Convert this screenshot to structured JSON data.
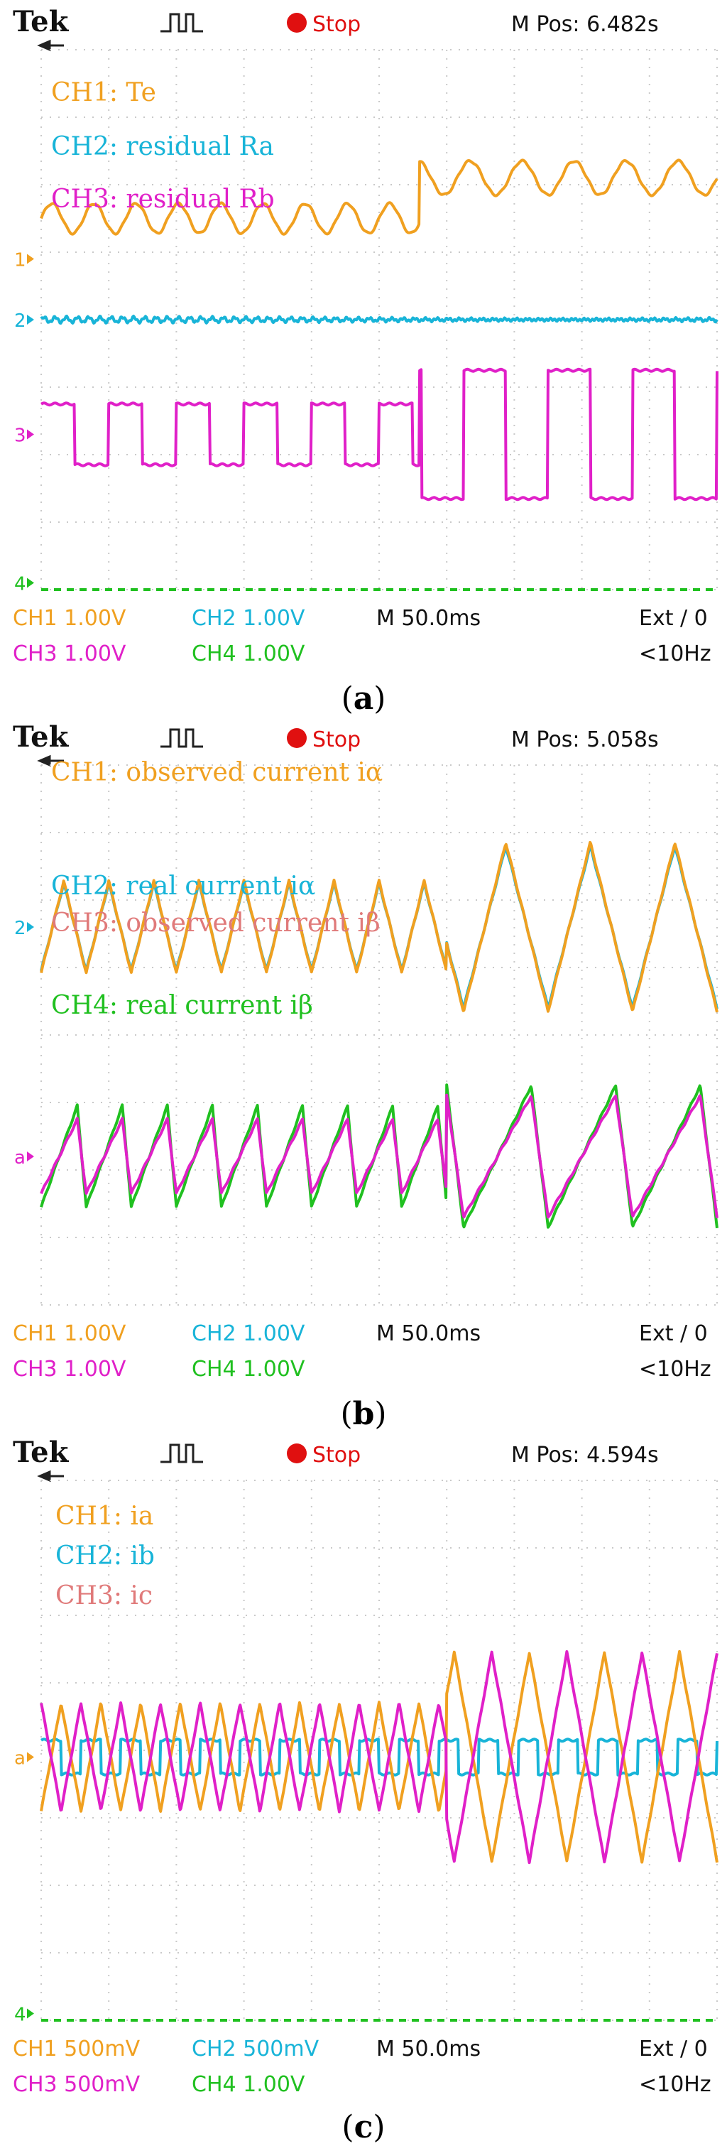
{
  "colors": {
    "ch1": "#f0a020",
    "ch2": "#18b4d8",
    "ch3": "#e020c8",
    "ch4": "#20c020",
    "label_ch3": "#e07a7a",
    "grid": "#c9c9c9",
    "frame_bg": "#ffffff",
    "stop": "#e01010"
  },
  "chart_data": [
    {
      "type": "line",
      "caption": "a",
      "header": {
        "brand": "Tek",
        "status": "Stop",
        "mpos": "M Pos: 6.482s"
      },
      "footer": {
        "row1": [
          "CH1  1.00V",
          "CH2  1.00V",
          "M 50.0ms",
          "Ext ∕ 0"
        ],
        "row2": [
          "CH3  1.00V",
          "CH4  1.00V",
          "<10Hz"
        ]
      },
      "markers": [
        {
          "label": "1",
          "series": "CH1",
          "y": 0.9
        },
        {
          "label": "2",
          "series": "CH2",
          "y": 0.0
        },
        {
          "label": "3",
          "series": "CH3",
          "y": -1.7
        },
        {
          "label": "4",
          "series": "CH4",
          "y": -3.9
        }
      ],
      "labels": [
        {
          "text": "CH1: Te",
          "series": "CH1"
        },
        {
          "text": "CH2: residual Ra",
          "series": "CH2"
        },
        {
          "text": "CH3: residual Rb",
          "series": "CH3"
        }
      ],
      "series": [
        {
          "name": "CH1",
          "channel": "ch1",
          "wave": "sine",
          "offset": 1.5,
          "segments": [
            {
              "t0": 0,
              "t1": 0.56,
              "amp": 0.22,
              "cycles": 16,
              "base": 2.8
            },
            {
              "t0": 0.56,
              "t1": 1,
              "amp": 0.25,
              "cycles": 13,
              "base": 3.4
            }
          ]
        },
        {
          "name": "CH2",
          "channel": "ch2",
          "wave": "noise",
          "offset": 0,
          "segments": [
            {
              "t0": 0,
              "t1": 1,
              "amp": 0.04,
              "cycles": 60,
              "base": 0
            }
          ]
        },
        {
          "name": "CH3",
          "channel": "ch3",
          "wave": "square",
          "offset": -1.7,
          "segments": [
            {
              "t0": 0,
              "t1": 0.56,
              "amp": 0.45,
              "cycles": 10,
              "base": 0
            },
            {
              "t0": 0.56,
              "t1": 1,
              "amp": 0.95,
              "cycles": 8,
              "base": 0
            }
          ]
        }
      ],
      "xlim": [
        0,
        10
      ],
      "ylim": [
        -4,
        4
      ]
    },
    {
      "type": "line",
      "caption": "b",
      "header": {
        "brand": "Tek",
        "status": "Stop",
        "mpos": "M Pos: 5.058s"
      },
      "footer": {
        "row1": [
          "CH1  1.00V",
          "CH2  1.00V",
          "M 50.0ms",
          "Ext ∕ 0"
        ],
        "row2": [
          "CH3  1.00V",
          "CH4  1.00V",
          "<10Hz"
        ]
      },
      "markers": [
        {
          "label": "2",
          "series": "CH2",
          "y": 1.6
        },
        {
          "label": "a",
          "series": "CH3",
          "y": -1.8
        }
      ],
      "labels": [
        {
          "text": "CH1: observed current iα",
          "series": "CH1"
        },
        {
          "text": "CH2: real current iα",
          "series": "CH2"
        },
        {
          "text": "CH3: observed current iβ",
          "series": "CH3label"
        },
        {
          "text": "CH4: real current iβ",
          "series": "CH4"
        }
      ],
      "series": [
        {
          "name": "CH2",
          "channel": "ch2",
          "wave": "tri",
          "offset": 1.6,
          "segments": [
            {
              "t0": 0,
              "t1": 0.6,
              "amp": 0.65,
              "cycles": 15,
              "base": 0
            },
            {
              "t0": 0.6,
              "t1": 1,
              "amp": 1.2,
              "cycles": 8,
              "base": 0
            }
          ]
        },
        {
          "name": "CH1",
          "channel": "ch1",
          "wave": "tri",
          "offset": 1.6,
          "segments": [
            {
              "t0": 0,
              "t1": 0.6,
              "amp": 0.68,
              "cycles": 15,
              "base": 0
            },
            {
              "t0": 0.6,
              "t1": 1,
              "amp": 1.25,
              "cycles": 8,
              "base": 0
            }
          ]
        },
        {
          "name": "CH4",
          "channel": "ch4",
          "wave": "saw",
          "offset": -1.8,
          "segments": [
            {
              "t0": 0,
              "t1": 0.6,
              "amp": 0.75,
              "cycles": 15,
              "base": 0
            },
            {
              "t0": 0.6,
              "t1": 1,
              "amp": 1.05,
              "cycles": 8,
              "base": 0
            }
          ]
        },
        {
          "name": "CH3",
          "channel": "ch3",
          "wave": "saw",
          "offset": -1.8,
          "segments": [
            {
              "t0": 0,
              "t1": 0.6,
              "amp": 0.55,
              "cycles": 15,
              "base": 0
            },
            {
              "t0": 0.6,
              "t1": 1,
              "amp": 0.9,
              "cycles": 8,
              "base": 0
            }
          ]
        }
      ],
      "xlim": [
        0,
        10
      ],
      "ylim": [
        -4,
        4
      ]
    },
    {
      "type": "line",
      "caption": "c",
      "header": {
        "brand": "Tek",
        "status": "Stop",
        "mpos": "M Pos: 4.594s"
      },
      "footer": {
        "row1": [
          "CH1  500mV",
          "CH2  500mV",
          "M 50.0ms",
          "Ext ∕ 0"
        ],
        "row2": [
          "CH3  500mV",
          "CH4  1.00V",
          "<10Hz"
        ]
      },
      "markers": [
        {
          "label": "a",
          "series": "CH1",
          "y": -0.1
        },
        {
          "label": "4",
          "series": "CH4",
          "y": -3.9
        }
      ],
      "labels": [
        {
          "text": "CH1: ia",
          "series": "CH1"
        },
        {
          "text": "CH2: ib",
          "series": "CH2"
        },
        {
          "text": "CH3: ic",
          "series": "CH3label"
        }
      ],
      "series": [
        {
          "name": "CH2",
          "channel": "ch2",
          "wave": "square",
          "offset": -0.1,
          "segments": [
            {
              "t0": 0,
              "t1": 1,
              "amp": 0.25,
              "cycles": 17,
              "base": 0
            }
          ]
        },
        {
          "name": "CH1",
          "channel": "ch1",
          "wave": "tri",
          "offset": -0.1,
          "segments": [
            {
              "t0": 0,
              "t1": 0.6,
              "amp": 0.8,
              "cycles": 17,
              "base": 0
            },
            {
              "t0": 0.6,
              "t1": 1,
              "amp": 1.55,
              "cycles": 9,
              "base": 0
            }
          ]
        },
        {
          "name": "CH3",
          "channel": "ch3",
          "wave": "tri",
          "offset": -0.1,
          "phase": 0.5,
          "segments": [
            {
              "t0": 0,
              "t1": 0.6,
              "amp": 0.8,
              "cycles": 17,
              "base": 0
            },
            {
              "t0": 0.6,
              "t1": 1,
              "amp": 1.55,
              "cycles": 9,
              "base": 0
            }
          ]
        }
      ],
      "xlim": [
        0,
        10
      ],
      "ylim": [
        -4,
        4
      ]
    }
  ]
}
